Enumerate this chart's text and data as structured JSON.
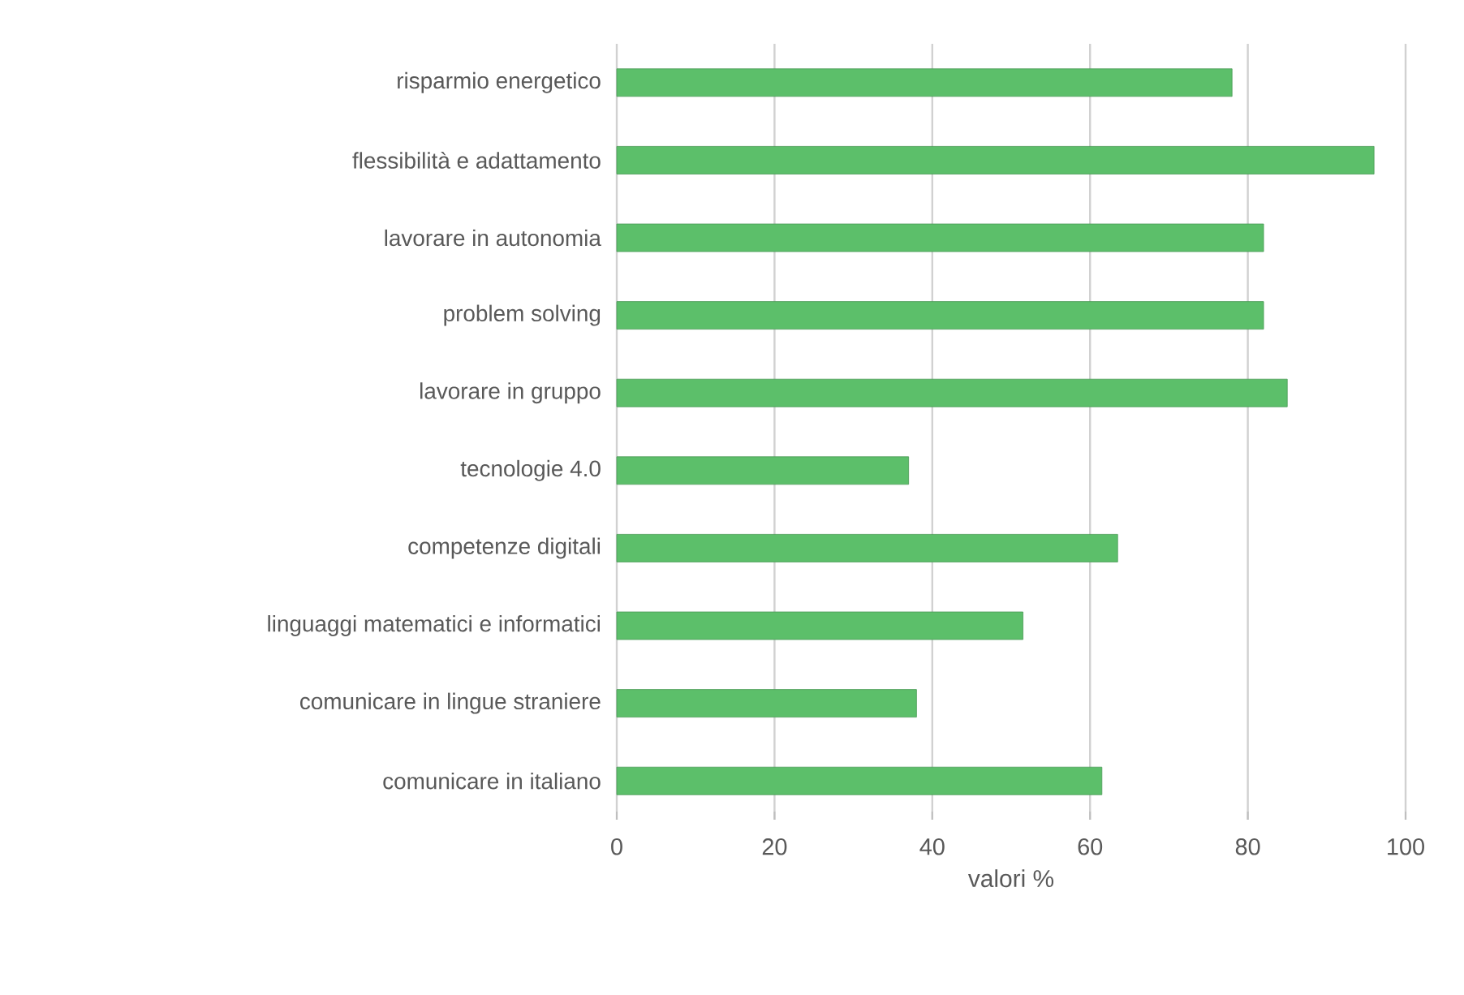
{
  "chart_data": {
    "type": "bar",
    "orientation": "horizontal",
    "xlabel": "valori %",
    "categories": [
      "risparmio energetico",
      "flessibilità e adattamento",
      "lavorare in autonomia",
      "problem solving",
      "lavorare in gruppo",
      "tecnologie 4.0",
      "competenze digitali",
      "linguaggi matematici e informatici",
      "comunicare in lingue straniere",
      "comunicare in italiano"
    ],
    "values": [
      78,
      96,
      82,
      82,
      85,
      37,
      63.5,
      51.5,
      38,
      61.5
    ],
    "color": "#5cbf6a",
    "xlim": [
      0,
      100
    ],
    "xticks": [
      0,
      20,
      40,
      60,
      80,
      100
    ],
    "grid": "x"
  }
}
